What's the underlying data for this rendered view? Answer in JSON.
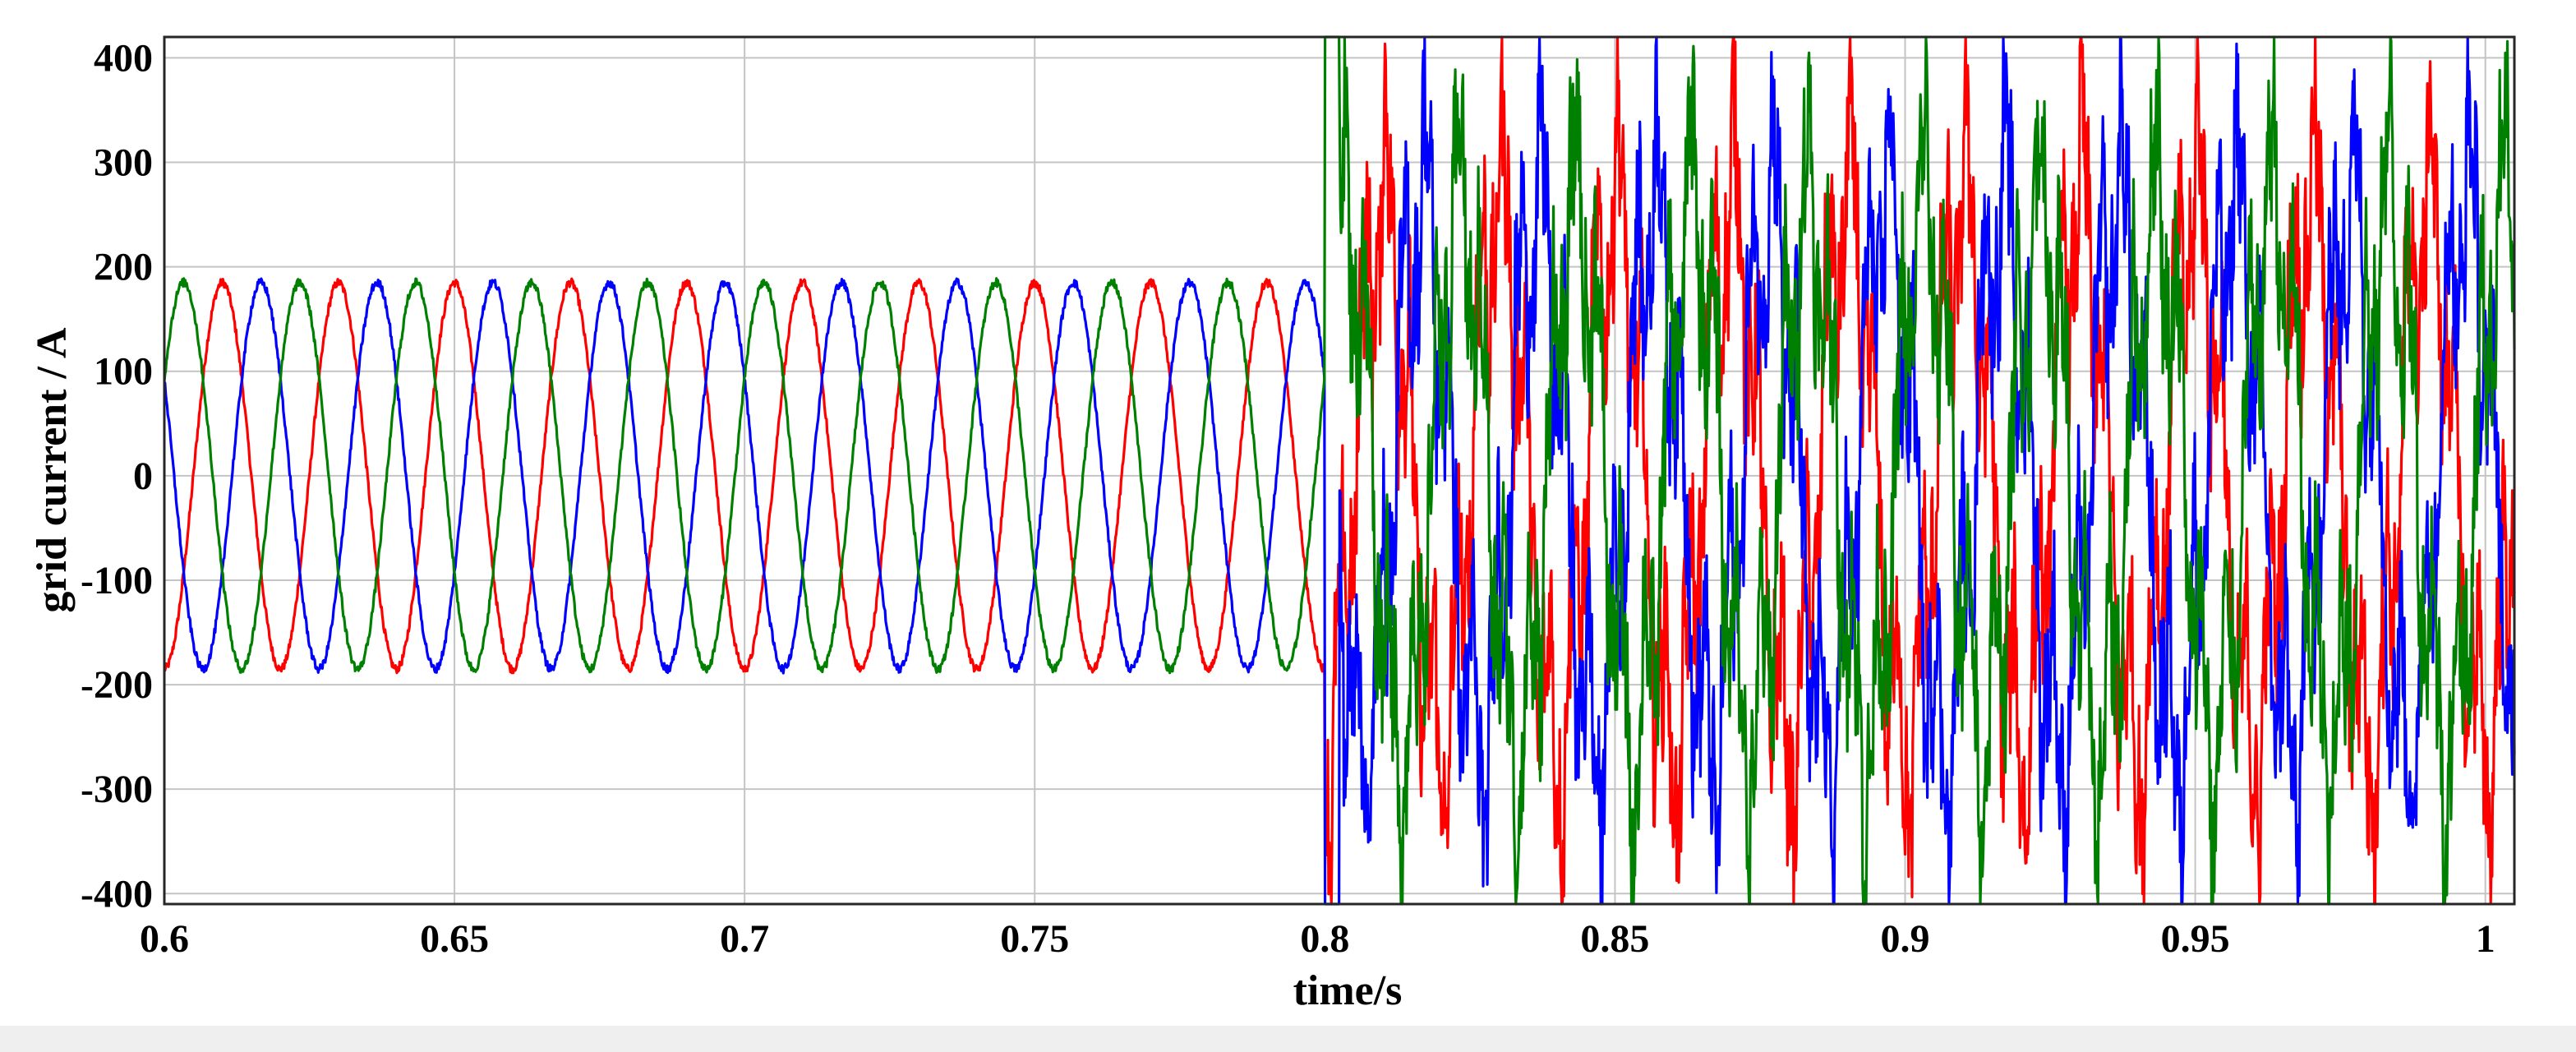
{
  "chart_data": {
    "type": "line",
    "title": "",
    "xlabel": "time/s",
    "ylabel": "grid current / A",
    "xlim": [
      0.6,
      1.005
    ],
    "ylim": [
      -410,
      420
    ],
    "x_ticks": [
      0.6,
      0.65,
      0.7,
      0.75,
      0.8,
      0.85,
      0.9,
      0.95,
      1
    ],
    "x_tick_labels": [
      "0.6",
      "0.65",
      "0.7",
      "0.75",
      "0.8",
      "0.85",
      "0.9",
      "0.95",
      "1"
    ],
    "y_ticks": [
      400,
      300,
      200,
      100,
      0,
      -100,
      -200,
      -300,
      -400
    ],
    "y_tick_labels": [
      "400",
      "300",
      "200",
      "100",
      "0",
      "-100",
      "-200",
      "-300",
      "-400"
    ],
    "grid": true,
    "legend": "none",
    "frequency_hz": 50,
    "fault_time_s": 0.8,
    "series": [
      {
        "color": "#ff0000",
        "amplitude_before": 185,
        "amplitude_after": 260,
        "phase_deg": -90
      },
      {
        "color": "#0000ff",
        "amplitude_before": 185,
        "amplitude_after": 260,
        "phase_deg": 150
      },
      {
        "color": "#008000",
        "amplitude_before": 185,
        "amplitude_after": 260,
        "phase_deg": 30
      }
    ]
  }
}
